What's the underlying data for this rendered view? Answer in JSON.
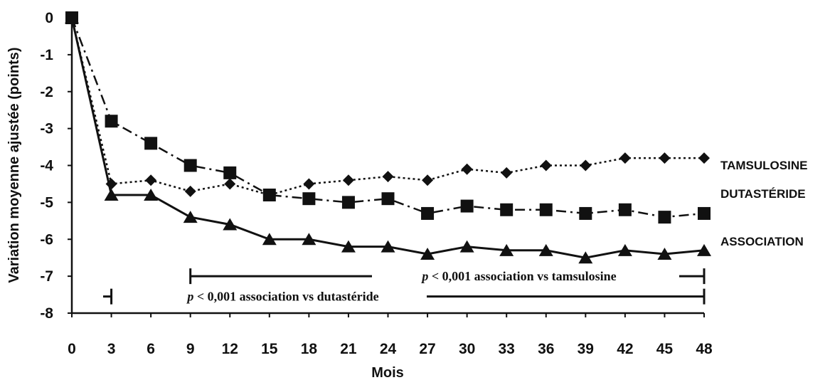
{
  "chart_data": {
    "type": "line",
    "title": "",
    "xlabel": "Mois",
    "ylabel": "Variation moyenne ajustée (points)",
    "x": [
      0,
      3,
      6,
      9,
      12,
      15,
      18,
      21,
      24,
      27,
      30,
      33,
      36,
      39,
      42,
      45,
      48
    ],
    "xticks": [
      "0",
      "3",
      "6",
      "9",
      "12",
      "15",
      "18",
      "21",
      "24",
      "27",
      "30",
      "33",
      "36",
      "39",
      "42",
      "45",
      "48"
    ],
    "yticks": [
      "0",
      "-1",
      "-2",
      "-3",
      "-4",
      "-5",
      "-6",
      "-7",
      "-8"
    ],
    "xlim": [
      0,
      48
    ],
    "ylim": [
      -8,
      0
    ],
    "grid": false,
    "series": [
      {
        "name": "TAMSULOSINE",
        "marker": "diamond",
        "line": "dotted",
        "color": "#111111",
        "values": [
          0,
          -4.5,
          -4.4,
          -4.7,
          -4.5,
          -4.8,
          -4.5,
          -4.4,
          -4.3,
          -4.4,
          -4.1,
          -4.2,
          -4.0,
          -4.0,
          -3.8,
          -3.8,
          -3.8
        ]
      },
      {
        "name": "DUTASTÉRIDE",
        "marker": "square",
        "line": "dash-dot",
        "color": "#111111",
        "values": [
          0,
          -2.8,
          -3.4,
          -4.0,
          -4.2,
          -4.8,
          -4.9,
          -5.0,
          -4.9,
          -5.3,
          -5.1,
          -5.2,
          -5.2,
          -5.3,
          -5.2,
          -5.4,
          -5.3
        ]
      },
      {
        "name": "ASSOCIATION",
        "marker": "triangle",
        "line": "solid",
        "color": "#111111",
        "values": [
          0,
          -4.8,
          -4.8,
          -5.4,
          -5.6,
          -6.0,
          -6.0,
          -6.2,
          -6.2,
          -6.4,
          -6.2,
          -6.3,
          -6.3,
          -6.5,
          -6.3,
          -6.4,
          -6.3
        ]
      }
    ],
    "annotations": [
      {
        "p": "p",
        "text": " < 0,001 association vs tamsulosine",
        "x_start": 9,
        "x_end": 48,
        "y": -7.0
      },
      {
        "p": "p",
        "text": " < 0,001 association vs dutastéride",
        "x_start": 3,
        "x_end": 48,
        "y": -7.55
      }
    ]
  }
}
